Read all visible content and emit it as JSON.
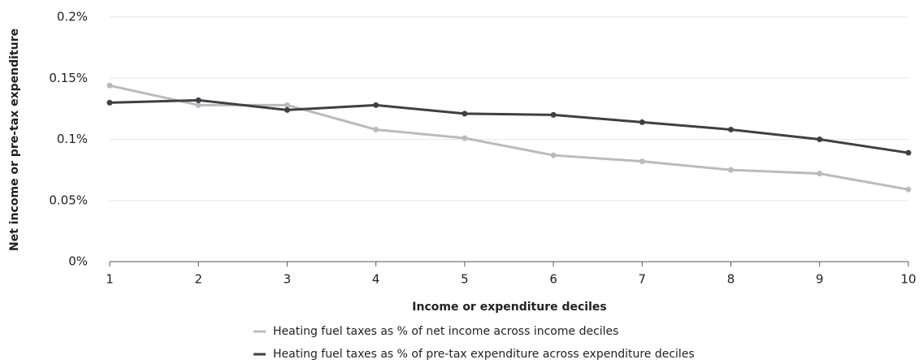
{
  "chart_data": {
    "type": "line",
    "x_label": "Income or expenditure deciles",
    "y_label": "Net income or pre-tax expenditure",
    "x": [
      1,
      2,
      3,
      4,
      5,
      6,
      7,
      8,
      9,
      10
    ],
    "series": [
      {
        "name": "Heating fuel taxes as % of net income across income deciles",
        "color": "#b8bcbf",
        "values": [
          0.144,
          0.128,
          0.128,
          0.108,
          0.101,
          0.087,
          0.082,
          0.075,
          0.072,
          0.059
        ]
      },
      {
        "name": "Heating fuel taxes as % of pre-tax expenditure across expenditure deciles",
        "color": "#3d4045",
        "values": [
          0.13,
          0.132,
          0.124,
          0.128,
          0.121,
          0.12,
          0.114,
          0.108,
          0.1,
          0.089
        ]
      }
    ],
    "xlim": [
      1,
      10
    ],
    "xticks": [
      1,
      2,
      3,
      4,
      5,
      6,
      7,
      8,
      9,
      10
    ],
    "ylim": [
      0,
      0.2
    ],
    "yticks": [
      {
        "value": 0,
        "label": "0%"
      },
      {
        "value": 0.05,
        "label": "0.05%"
      },
      {
        "value": 0.1,
        "label": "0.1%"
      },
      {
        "value": 0.15,
        "label": "0.15%"
      },
      {
        "value": 0.2,
        "label": "0.2%"
      }
    ],
    "grid": true,
    "legend": "bottom"
  }
}
